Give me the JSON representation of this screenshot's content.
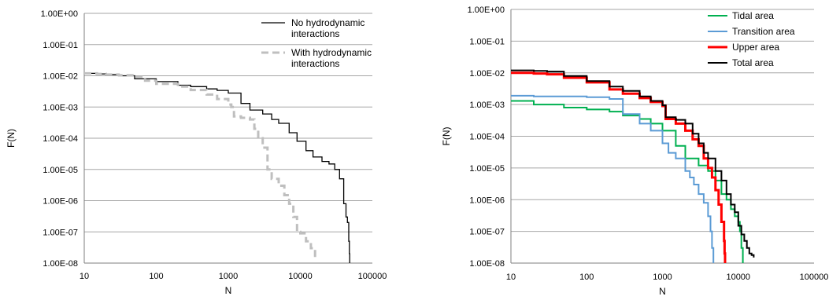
{
  "chart_data": [
    {
      "type": "line",
      "title": "",
      "xlabel": "N",
      "ylabel": "F(N)",
      "xscale": "log",
      "yscale": "log",
      "xlim": [
        10,
        100000
      ],
      "ylim": [
        1e-08,
        1
      ],
      "x_tick_labels": [
        "10",
        "100",
        "1000",
        "10000",
        "100000"
      ],
      "y_tick_labels": [
        "1.00E-08",
        "1.00E-07",
        "1.00E-06",
        "1.00E-05",
        "1.00E-04",
        "1.00E-03",
        "1.00E-02",
        "1.00E-01",
        "1.00E+00"
      ],
      "grid": "horizontal",
      "legend_position": "top-right",
      "series": [
        {
          "name": "No hydrodynamic interactions",
          "color": "#000000",
          "dash": "solid",
          "x": [
            10,
            15,
            20,
            30,
            50,
            100,
            200,
            300,
            500,
            700,
            1000,
            1500,
            2000,
            3000,
            4000,
            5000,
            7000,
            9000,
            12000,
            15000,
            20000,
            25000,
            30000,
            35000,
            40000,
            43000,
            45000,
            47000,
            48000,
            48500
          ],
          "y": [
            0.012,
            0.0115,
            0.011,
            0.01,
            0.008,
            0.0065,
            0.005,
            0.0045,
            0.0038,
            0.0034,
            0.0028,
            0.0013,
            0.0008,
            0.0006,
            0.0004,
            0.0003,
            0.00015,
            8e-05,
            4e-05,
            2.5e-05,
            1.8e-05,
            1.5e-05,
            1e-05,
            5e-06,
            8e-07,
            3e-07,
            2e-07,
            5e-08,
            2e-08,
            1e-08
          ]
        },
        {
          "name": "With hydrodynamic interactions",
          "color": "#bfbfbf",
          "dash": "dashed",
          "x": [
            10,
            15,
            20,
            30,
            50,
            70,
            100,
            200,
            300,
            500,
            700,
            1000,
            1100,
            1200,
            1500,
            2000,
            2300,
            2600,
            3000,
            3500,
            4000,
            5000,
            6000,
            7000,
            8000,
            9000,
            10000,
            12000,
            14000,
            16000
          ],
          "y": [
            0.012,
            0.0115,
            0.011,
            0.0105,
            0.009,
            0.007,
            0.0055,
            0.0045,
            0.0035,
            0.0025,
            0.0018,
            0.0012,
            0.001,
            0.0005,
            0.00045,
            0.0004,
            0.0002,
            0.0001,
            5e-05,
            1e-05,
            5e-06,
            3e-06,
            1.5e-06,
            8e-07,
            3e-07,
            1e-07,
            9e-08,
            5e-08,
            3e-08,
            1.5e-08
          ]
        }
      ]
    },
    {
      "type": "line",
      "title": "",
      "xlabel": "N",
      "ylabel": "F(N)",
      "xscale": "log",
      "yscale": "log",
      "xlim": [
        10,
        100000
      ],
      "ylim": [
        1e-08,
        1
      ],
      "x_tick_labels": [
        "10",
        "100",
        "1000",
        "10000",
        "100000"
      ],
      "y_tick_labels": [
        "1.00E-08",
        "1.00E-07",
        "1.00E-06",
        "1.00E-05",
        "1.00E-04",
        "1.00E-03",
        "1.00E-02",
        "1.00E-01",
        "1.00E+00"
      ],
      "grid": "horizontal",
      "legend_position": "top-right",
      "series": [
        {
          "name": "Tidal area",
          "color": "#00b050",
          "x": [
            10,
            20,
            50,
            100,
            200,
            300,
            500,
            700,
            1000,
            1500,
            2000,
            3000,
            4000,
            5000,
            6000,
            7000,
            8000,
            9000,
            10000,
            10500,
            11000,
            11500
          ],
          "y": [
            0.0013,
            0.001,
            0.0008,
            0.0007,
            0.0006,
            0.00045,
            0.00035,
            0.00025,
            0.00015,
            5e-05,
            2e-05,
            1.2e-05,
            8e-06,
            4e-06,
            1.5e-06,
            1e-06,
            5e-07,
            3e-07,
            2e-07,
            1e-07,
            3e-08,
            1e-08
          ]
        },
        {
          "name": "Transition area",
          "color": "#5b9bd5",
          "x": [
            10,
            15,
            20,
            50,
            100,
            200,
            300,
            500,
            700,
            1000,
            1200,
            1500,
            2000,
            2300,
            2600,
            3000,
            3500,
            4000,
            4300,
            4500,
            4700
          ],
          "y": [
            0.0019,
            0.0019,
            0.0018,
            0.0018,
            0.0017,
            0.0015,
            0.0005,
            0.00025,
            0.00015,
            6e-05,
            3e-05,
            2e-05,
            8e-06,
            5e-06,
            3e-06,
            1.5e-06,
            8e-07,
            3e-07,
            1e-07,
            3e-08,
            1e-08
          ]
        },
        {
          "name": "Upper area",
          "color": "#ff0000",
          "x": [
            10,
            20,
            30,
            50,
            100,
            200,
            300,
            500,
            700,
            1000,
            1100,
            1500,
            2000,
            2500,
            3000,
            3500,
            4000,
            4500,
            5000,
            5500,
            6000,
            6500,
            6600,
            6700
          ],
          "y": [
            0.01,
            0.0095,
            0.009,
            0.007,
            0.005,
            0.003,
            0.0022,
            0.0016,
            0.0012,
            0.0009,
            0.00035,
            0.00025,
            0.00015,
            8e-05,
            5e-05,
            2e-05,
            1e-05,
            5e-06,
            2e-06,
            7e-07,
            2e-07,
            5e-08,
            2e-08,
            1e-08
          ]
        },
        {
          "name": "Total area",
          "color": "#000000",
          "x": [
            10,
            20,
            30,
            50,
            100,
            200,
            300,
            500,
            700,
            1000,
            1100,
            1500,
            2000,
            2500,
            3000,
            3500,
            4000,
            5000,
            6000,
            7000,
            8000,
            9000,
            10000,
            11000,
            12000,
            13000,
            14000,
            15000,
            16000
          ],
          "y": [
            0.012,
            0.0115,
            0.011,
            0.008,
            0.0055,
            0.0037,
            0.0027,
            0.0018,
            0.0013,
            0.00095,
            0.0004,
            0.00033,
            0.00025,
            0.00012,
            6e-05,
            3e-05,
            2e-05,
            8e-06,
            4e-06,
            1.5e-06,
            7e-07,
            4e-07,
            1.5e-07,
            8e-08,
            5e-08,
            3e-08,
            2e-08,
            1.8e-08,
            1.5e-08
          ]
        }
      ]
    }
  ]
}
